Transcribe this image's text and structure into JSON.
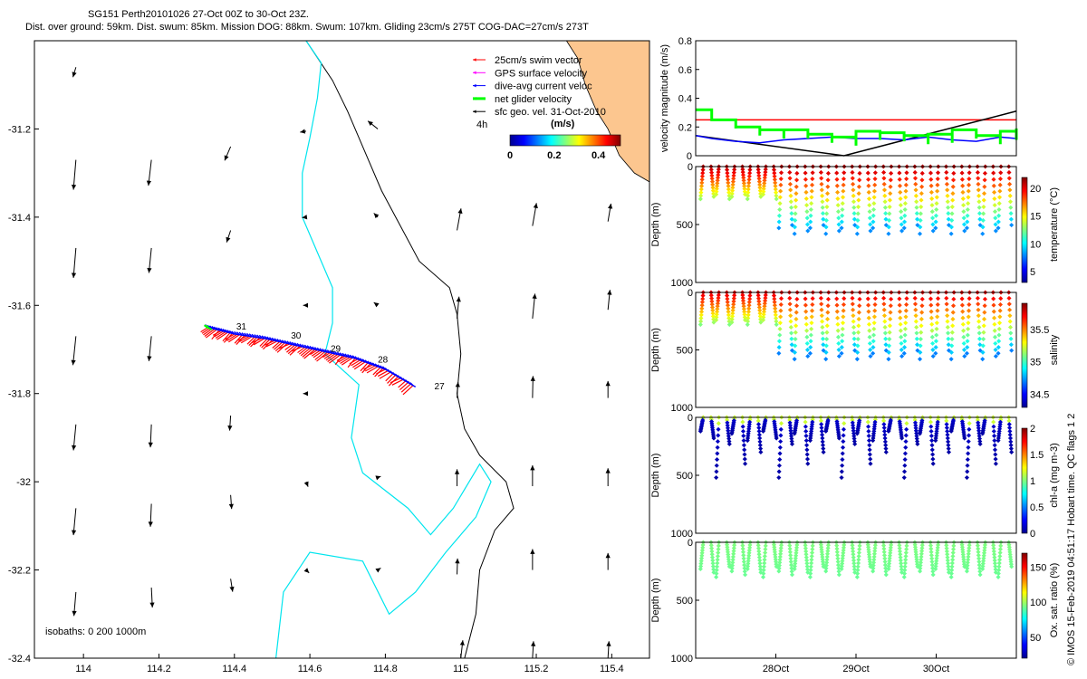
{
  "header": {
    "title_line1": "SG151 Perth20101026 27-Oct 00Z to 30-Oct 23Z.",
    "title_line2": "Dist. over ground: 59km. Dist. swum: 85km. Mission DOG: 88km. Swum: 107km. Gliding 23cm/s 275T COG-DAC=27cm/s 273T"
  },
  "credit": "© IMOS 15-Feb-2019 04:51:17 Hobart time. QC flags 1  2",
  "colors": {
    "coast": "#000000",
    "isobath_200": "#00e5ee",
    "land": "#fcc68f",
    "swim": "#ff0000",
    "gps": "#ff00ff",
    "dac": "#0000ff",
    "net": "#00ff00",
    "geo": "#000000"
  },
  "chart_data": [
    {
      "type": "map",
      "name": "track-map",
      "xlim": [
        113.87,
        115.5
      ],
      "ylim": [
        -32.4,
        -31.0
      ],
      "x_ticks": [
        "114",
        "114.2",
        "114.4",
        "114.6",
        "114.8",
        "115",
        "115.2",
        "115.4"
      ],
      "x_tick_values": [
        114,
        114.2,
        114.4,
        114.6,
        114.8,
        115,
        115.2,
        115.4
      ],
      "y_ticks": [
        "-31.2",
        "-31.4",
        "-31.6",
        "-31.8",
        "-32",
        "-32.2",
        "-32.4"
      ],
      "y_tick_values": [
        -31.2,
        -31.4,
        -31.6,
        -31.8,
        -32,
        -32.2,
        -32.4
      ],
      "legend": [
        {
          "label": "25cm/s swim vector",
          "color": "#ff0000"
        },
        {
          "label": "GPS surface velocity",
          "color": "#ff00ff"
        },
        {
          "label": "dive-avg current veloc",
          "color": "#0000ff"
        },
        {
          "label": "net glider velocity",
          "color": "#00ff00"
        },
        {
          "label": "sfc geo. vel. 31-Oct-2010",
          "color": "#000000"
        }
      ],
      "legend_note": "4h",
      "colorbar": {
        "title": "(m/s)",
        "ticks": [
          "0",
          "0.2",
          "0.4"
        ],
        "range": [
          0,
          0.5
        ]
      },
      "isobaths_label": "isobaths: 0   200  1000m",
      "day_labels": [
        {
          "lon": 114.405,
          "lat": -31.655,
          "text": "31"
        },
        {
          "lon": 114.55,
          "lat": -31.675,
          "text": "30"
        },
        {
          "lon": 114.655,
          "lat": -31.705,
          "text": "29"
        },
        {
          "lon": 114.78,
          "lat": -31.73,
          "text": "28"
        },
        {
          "lon": 114.93,
          "lat": -31.79,
          "text": "27"
        }
      ],
      "track": [
        [
          114.33,
          -31.65
        ],
        [
          114.4,
          -31.665
        ],
        [
          114.48,
          -31.675
        ],
        [
          114.56,
          -31.69
        ],
        [
          114.64,
          -31.705
        ],
        [
          114.72,
          -31.72
        ],
        [
          114.8,
          -31.745
        ],
        [
          114.88,
          -31.785
        ]
      ],
      "geo_vectors": [
        {
          "lon": 113.98,
          "lat": -31.06,
          "u": -0.3,
          "v": -1.0
        },
        {
          "lon": 113.98,
          "lat": -31.27,
          "u": -0.25,
          "v": -3.0
        },
        {
          "lon": 114.18,
          "lat": -31.27,
          "u": -0.3,
          "v": -2.6
        },
        {
          "lon": 114.39,
          "lat": -31.24,
          "u": -0.6,
          "v": -1.4
        },
        {
          "lon": 114.59,
          "lat": -31.205,
          "u": -0.6,
          "v": -0.1
        },
        {
          "lon": 114.78,
          "lat": -31.2,
          "u": -1.0,
          "v": 0.8
        },
        {
          "lon": 113.98,
          "lat": -31.47,
          "u": -0.25,
          "v": -3.0
        },
        {
          "lon": 114.18,
          "lat": -31.47,
          "u": -0.25,
          "v": -2.5
        },
        {
          "lon": 114.39,
          "lat": -31.43,
          "u": -0.4,
          "v": -1.2
        },
        {
          "lon": 114.59,
          "lat": -31.4,
          "u": -0.4,
          "v": -0.05
        },
        {
          "lon": 114.78,
          "lat": -31.4,
          "u": -0.4,
          "v": 0.4
        },
        {
          "lon": 114.99,
          "lat": -31.43,
          "u": 0.4,
          "v": 2.2
        },
        {
          "lon": 115.19,
          "lat": -31.42,
          "u": 0.4,
          "v": 2.3
        },
        {
          "lon": 115.39,
          "lat": -31.41,
          "u": 0.3,
          "v": 1.8
        },
        {
          "lon": 113.98,
          "lat": -31.67,
          "u": -0.3,
          "v": -2.9
        },
        {
          "lon": 114.18,
          "lat": -31.67,
          "u": -0.25,
          "v": -2.5
        },
        {
          "lon": 114.59,
          "lat": -31.6,
          "u": -0.3,
          "v": 0
        },
        {
          "lon": 114.78,
          "lat": -31.6,
          "u": -0.4,
          "v": 0.3
        },
        {
          "lon": 114.99,
          "lat": -31.63,
          "u": 0.2,
          "v": 2.2
        },
        {
          "lon": 115.19,
          "lat": -31.63,
          "u": 0.25,
          "v": 2.5
        },
        {
          "lon": 115.39,
          "lat": -31.61,
          "u": 0.2,
          "v": 2.0
        },
        {
          "lon": 113.98,
          "lat": -31.87,
          "u": -0.25,
          "v": -2.6
        },
        {
          "lon": 114.18,
          "lat": -31.87,
          "u": -0.1,
          "v": -2.3
        },
        {
          "lon": 114.39,
          "lat": -31.85,
          "u": -0.1,
          "v": -1.5
        },
        {
          "lon": 114.59,
          "lat": -31.8,
          "u": -0.3,
          "v": 0
        },
        {
          "lon": 114.99,
          "lat": -31.81,
          "u": 0.1,
          "v": 1.6
        },
        {
          "lon": 115.19,
          "lat": -31.81,
          "u": 0.05,
          "v": 2.2
        },
        {
          "lon": 115.39,
          "lat": -31.81,
          "u": 0.0,
          "v": 1.7
        },
        {
          "lon": 113.98,
          "lat": -32.06,
          "u": -0.25,
          "v": -2.7
        },
        {
          "lon": 114.18,
          "lat": -32.05,
          "u": -0.1,
          "v": -2.3
        },
        {
          "lon": 114.39,
          "lat": -32.03,
          "u": 0.1,
          "v": -1.4
        },
        {
          "lon": 114.59,
          "lat": -32.0,
          "u": 0.2,
          "v": -0.5
        },
        {
          "lon": 114.78,
          "lat": -31.99,
          "u": 0.3,
          "v": 0.1
        },
        {
          "lon": 114.99,
          "lat": -32.01,
          "u": 0.0,
          "v": 1.7
        },
        {
          "lon": 115.19,
          "lat": -32.01,
          "u": 0.0,
          "v": 2.1
        },
        {
          "lon": 115.39,
          "lat": -32.01,
          "u": 0.0,
          "v": 1.8
        },
        {
          "lon": 113.98,
          "lat": -32.25,
          "u": -0.2,
          "v": -2.4
        },
        {
          "lon": 114.18,
          "lat": -32.24,
          "u": 0.1,
          "v": -2.0
        },
        {
          "lon": 114.39,
          "lat": -32.22,
          "u": 0.2,
          "v": -1.3
        },
        {
          "lon": 114.59,
          "lat": -32.2,
          "u": 0.3,
          "v": -0.3
        },
        {
          "lon": 114.78,
          "lat": -32.2,
          "u": 0.3,
          "v": 0.2
        },
        {
          "lon": 114.99,
          "lat": -32.21,
          "u": 0.05,
          "v": 1.6
        },
        {
          "lon": 115.19,
          "lat": -32.2,
          "u": 0.0,
          "v": 2.1
        },
        {
          "lon": 115.39,
          "lat": -32.2,
          "u": 0.0,
          "v": 1.7
        },
        {
          "lon": 115.0,
          "lat": -32.4,
          "u": 0.2,
          "v": 1.8
        },
        {
          "lon": 115.19,
          "lat": -32.4,
          "u": 0.1,
          "v": 1.7
        },
        {
          "lon": 115.39,
          "lat": -32.4,
          "u": 0.1,
          "v": 1.7
        }
      ],
      "coastline_1000": [
        [
          114.59,
          -31.0
        ],
        [
          114.66,
          -31.09
        ],
        [
          114.7,
          -31.16
        ],
        [
          114.74,
          -31.24
        ],
        [
          114.79,
          -31.34
        ],
        [
          114.84,
          -31.42
        ],
        [
          114.89,
          -31.5
        ],
        [
          114.97,
          -31.56
        ],
        [
          114.99,
          -31.62
        ],
        [
          115.0,
          -31.71
        ],
        [
          114.99,
          -31.8
        ],
        [
          115.01,
          -31.88
        ],
        [
          115.05,
          -31.94
        ],
        [
          115.12,
          -32.0
        ],
        [
          115.14,
          -32.06
        ],
        [
          115.09,
          -32.11
        ],
        [
          115.05,
          -32.2
        ],
        [
          115.04,
          -32.3
        ],
        [
          115.01,
          -32.4
        ]
      ],
      "isobath_200": [
        [
          114.59,
          -31.0
        ],
        [
          114.63,
          -31.05
        ],
        [
          114.62,
          -31.13
        ],
        [
          114.6,
          -31.22
        ],
        [
          114.58,
          -31.3
        ],
        [
          114.58,
          -31.4
        ],
        [
          114.62,
          -31.48
        ],
        [
          114.66,
          -31.56
        ],
        [
          114.66,
          -31.64
        ],
        [
          114.64,
          -31.71
        ],
        [
          114.73,
          -31.78
        ],
        [
          114.72,
          -31.84
        ],
        [
          114.71,
          -31.9
        ],
        [
          114.74,
          -31.98
        ],
        [
          114.86,
          -32.06
        ],
        [
          114.92,
          -32.12
        ],
        [
          114.98,
          -32.06
        ],
        [
          115.05,
          -31.96
        ],
        [
          115.08,
          -32.0
        ],
        [
          115.04,
          -32.08
        ],
        [
          114.96,
          -32.16
        ],
        [
          114.88,
          -32.25
        ],
        [
          114.81,
          -32.3
        ],
        [
          114.74,
          -32.18
        ],
        [
          114.6,
          -32.16
        ],
        [
          114.53,
          -32.25
        ],
        [
          114.51,
          -32.4
        ]
      ]
    },
    {
      "type": "line",
      "name": "velocity-panel",
      "ylabel": "velocity magnitude (m/s)",
      "ylim": [
        0,
        0.8
      ],
      "y_ticks": [
        "0",
        "0.2",
        "0.4",
        "0.6",
        "0.8"
      ],
      "x_range_days": [
        27.0,
        31.0
      ],
      "series": [
        {
          "name": "swim",
          "color": "#ff0000",
          "x": [
            27.0,
            31.0
          ],
          "y": [
            0.25,
            0.25
          ]
        },
        {
          "name": "sfc geo",
          "color": "#000000",
          "x": [
            27.0,
            28.85,
            31.0
          ],
          "y": [
            0.14,
            0.0,
            0.31
          ]
        },
        {
          "name": "dac",
          "color": "#0000ff",
          "x": [
            27.0,
            27.2,
            27.5,
            27.8,
            28.1,
            28.4,
            28.7,
            29.0,
            29.3,
            29.6,
            29.9,
            30.2,
            30.5,
            30.8,
            31.0
          ],
          "y": [
            0.14,
            0.12,
            0.1,
            0.09,
            0.11,
            0.12,
            0.13,
            0.12,
            0.12,
            0.11,
            0.13,
            0.11,
            0.1,
            0.13,
            0.12
          ]
        },
        {
          "name": "net",
          "color": "#00ff00",
          "x": [
            27.0,
            27.2,
            27.5,
            27.8,
            28.1,
            28.4,
            28.7,
            29.0,
            29.3,
            29.6,
            29.9,
            30.2,
            30.5,
            30.8,
            31.0
          ],
          "y": [
            0.32,
            0.25,
            0.2,
            0.18,
            0.18,
            0.15,
            0.13,
            0.17,
            0.16,
            0.14,
            0.15,
            0.18,
            0.14,
            0.17,
            0.19
          ]
        }
      ]
    },
    {
      "type": "scatter",
      "name": "temperature-panel",
      "ylabel": "Depth (m)",
      "ylim": [
        0,
        1000
      ],
      "y_ticks": [
        "0",
        "500",
        "1000"
      ],
      "colorbar": {
        "label": "temperature (°C)",
        "ticks": [
          "5",
          "10",
          "15",
          "20"
        ],
        "range": [
          3,
          22
        ]
      },
      "dives": 40,
      "max_depth_first": 280,
      "max_depth_later": 580,
      "surface_value": 21,
      "deep_value": 8
    },
    {
      "type": "scatter",
      "name": "salinity-panel",
      "ylabel": "Depth (m)",
      "ylim": [
        0,
        1000
      ],
      "y_ticks": [
        "0",
        "500",
        "1000"
      ],
      "colorbar": {
        "label": "salinity",
        "ticks": [
          "34.5",
          "35",
          "35.5"
        ],
        "range": [
          34.3,
          35.9
        ]
      },
      "dives": 40,
      "max_depth_first": 280,
      "max_depth_later": 580,
      "surface_value": 35.75,
      "deep_value": 34.7
    },
    {
      "type": "scatter",
      "name": "chlorophyll-panel",
      "ylabel": "Depth (m)",
      "ylim": [
        0,
        1000
      ],
      "y_ticks": [
        "0",
        "500",
        "1000"
      ],
      "colorbar": {
        "label": "chl-a (mg m-3)",
        "ticks": [
          "0",
          "0.5",
          "1",
          "1.5",
          "2"
        ],
        "range": [
          0,
          2
        ]
      },
      "dives": 40,
      "surface_value": 0.55,
      "deep_value": 0.05
    },
    {
      "type": "scatter",
      "name": "oxygen-panel",
      "ylabel": "Depth (m)",
      "ylim": [
        0,
        1000
      ],
      "y_ticks": [
        "0",
        "500",
        "1000"
      ],
      "colorbar": {
        "label": "Ox. sat. ratio (%)",
        "ticks": [
          "50",
          "100",
          "150"
        ],
        "range": [
          20,
          170
        ]
      },
      "dives": 40,
      "surface_value": 95,
      "deep_value": 90
    }
  ],
  "time_axis": {
    "ticks": [
      "28Oct",
      "29Oct",
      "30Oct"
    ],
    "values": [
      28,
      29,
      30
    ]
  }
}
